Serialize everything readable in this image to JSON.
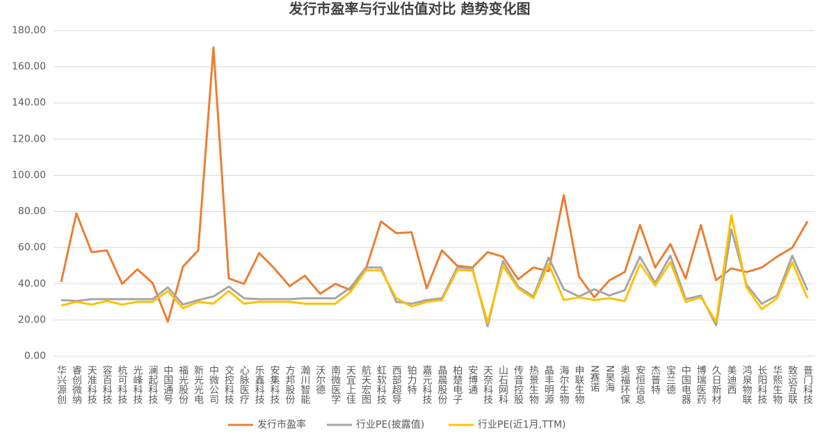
{
  "chart_data": {
    "type": "line",
    "title": "发行市盈率与行业估值对比 趋势变化图",
    "categories": [
      "华兴源创",
      "睿创微纳",
      "天准科技",
      "容百科技",
      "杭可科技",
      "光峰科技",
      "澜起科技",
      "中国通号",
      "福光股份",
      "新光光电",
      "中微公司",
      "交控科技",
      "心脉医疗",
      "乐鑫科技",
      "安集科技",
      "方邦股份",
      "瀚川智能",
      "沃尔德",
      "南微医学",
      "天宜上佳",
      "航天宏图",
      "虹软科技",
      "西部超导",
      "铂力特",
      "嘉元科技",
      "晶晨股份",
      "柏楚电子",
      "安博通",
      "天奈科技",
      "山石网科",
      "传音控股",
      "热景生物",
      "晶丰明源",
      "海尔生物",
      "申联生物",
      "N赛诺",
      "N昊海",
      "奥福环保",
      "安恒信息",
      "杰普特",
      "宝兰德",
      "中国电器",
      "博瑞医药",
      "久日新材",
      "美迪西",
      "鸿泉物联",
      "长阳科技",
      "华熙生物",
      "致远互联",
      "普门科技"
    ],
    "series": [
      {
        "name": "发行市盈率",
        "color": "#ed7d31",
        "values": [
          41,
          79,
          57.5,
          58.5,
          40,
          48,
          40.5,
          19,
          49.5,
          58.5,
          170.7,
          43,
          40,
          57,
          48.5,
          38.7,
          44.5,
          34.5,
          40,
          36.5,
          48,
          74.5,
          68,
          68.5,
          37.5,
          58.5,
          50,
          49,
          57.5,
          55,
          42.5,
          49,
          47,
          89,
          44,
          32.5,
          42,
          46.5,
          72.5,
          49,
          62,
          43,
          72.5,
          42,
          48.5,
          46.5,
          49,
          55,
          60,
          74.5
        ]
      },
      {
        "name": "行业PE(披露值)",
        "color": "#a5a5a5",
        "values": [
          31,
          30.5,
          31.5,
          31.5,
          31.5,
          31.5,
          31.5,
          38,
          28.5,
          31,
          33,
          38.5,
          32,
          31.5,
          31.5,
          31.5,
          32,
          32,
          32,
          38,
          49,
          49,
          30,
          29,
          31,
          32,
          49,
          48.5,
          16.5,
          52.5,
          38.5,
          33,
          54.5,
          37,
          33,
          37,
          33.5,
          36.5,
          55,
          40.5,
          55.5,
          31.5,
          33.5,
          17,
          70,
          39.5,
          29,
          33.5,
          55.5,
          36.5
        ]
      },
      {
        "name": "行业PE(近1月,TTM)",
        "color": "#ffc000",
        "values": [
          28,
          30,
          28.5,
          30.5,
          28.5,
          30,
          30,
          36,
          26.5,
          30,
          29,
          36,
          29,
          30,
          30,
          30,
          29,
          29,
          29,
          35.5,
          47.5,
          47.5,
          32,
          27.5,
          30,
          31,
          47.5,
          47.5,
          18.5,
          50,
          37.5,
          32,
          51,
          31,
          32.5,
          31,
          32,
          30.5,
          51,
          39,
          52,
          30,
          32.5,
          19,
          78,
          38,
          26,
          32,
          52,
          32
        ]
      }
    ],
    "ylim": [
      0,
      180
    ],
    "yticks": [
      {
        "value": 0,
        "label": "0.00"
      },
      {
        "value": 20,
        "label": "20.00"
      },
      {
        "value": 40,
        "label": "40.00"
      },
      {
        "value": 60,
        "label": "60.00"
      },
      {
        "value": 80,
        "label": "80.00"
      },
      {
        "value": 100,
        "label": "100.00"
      },
      {
        "value": 120,
        "label": "120.00"
      },
      {
        "value": 140,
        "label": "140.00"
      },
      {
        "value": 160,
        "label": "160.00"
      },
      {
        "value": 180,
        "label": "180.00"
      }
    ],
    "grid": true,
    "legend": "bottom"
  }
}
